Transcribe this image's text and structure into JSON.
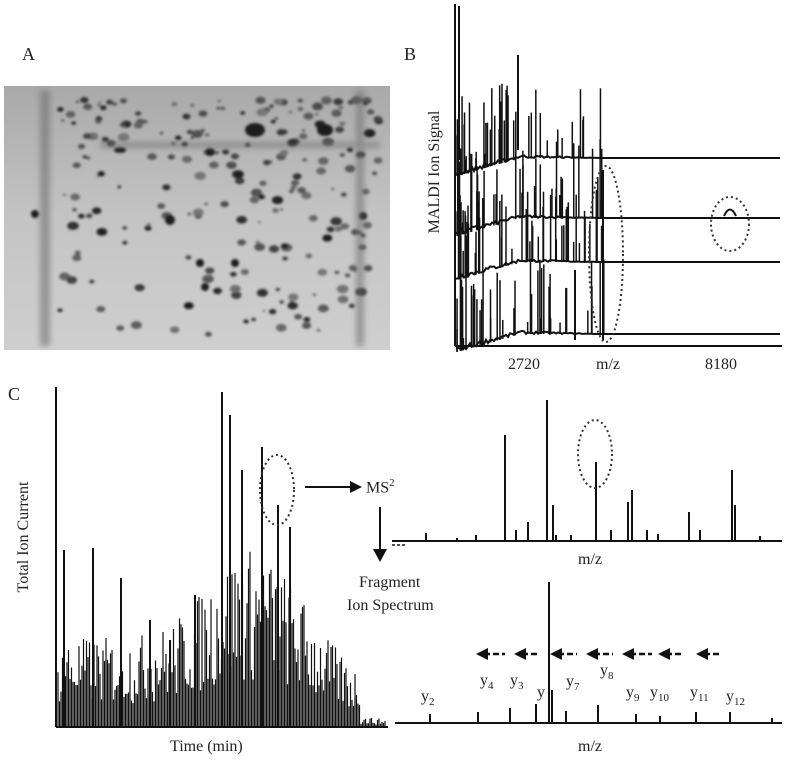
{
  "panels": {
    "a": {
      "letter": "A"
    },
    "b": {
      "letter": "B",
      "ylabel": "MALDI Ion Signal",
      "xlabel": "m/z",
      "ticks": [
        "2720",
        "8180"
      ]
    },
    "c": {
      "letter": "C",
      "ylabel": "Total Ion Current",
      "xlabel_time": "Time (min)",
      "xlabel_ms2": "m/z",
      "xlabel_frag": "m/z",
      "ms2_base": "MS",
      "ms2_sup": "2",
      "fragment_line1": "Fragment",
      "fragment_line2": "Ion Spectrum",
      "ions": [
        {
          "base": "y",
          "sub": "2"
        },
        {
          "base": "y",
          "sub": "4"
        },
        {
          "base": "y",
          "sub": "3"
        },
        {
          "base": "y",
          "sub": ""
        },
        {
          "base": "y",
          "sub": "7"
        },
        {
          "base": "y",
          "sub": "8"
        },
        {
          "base": "y",
          "sub": "9"
        },
        {
          "base": "y",
          "sub": "10"
        },
        {
          "base": "y",
          "sub": "11"
        },
        {
          "base": "y",
          "sub": "12"
        }
      ]
    }
  },
  "colors": {
    "ink": "#111111",
    "gel_bg": "#b9b9b9"
  }
}
